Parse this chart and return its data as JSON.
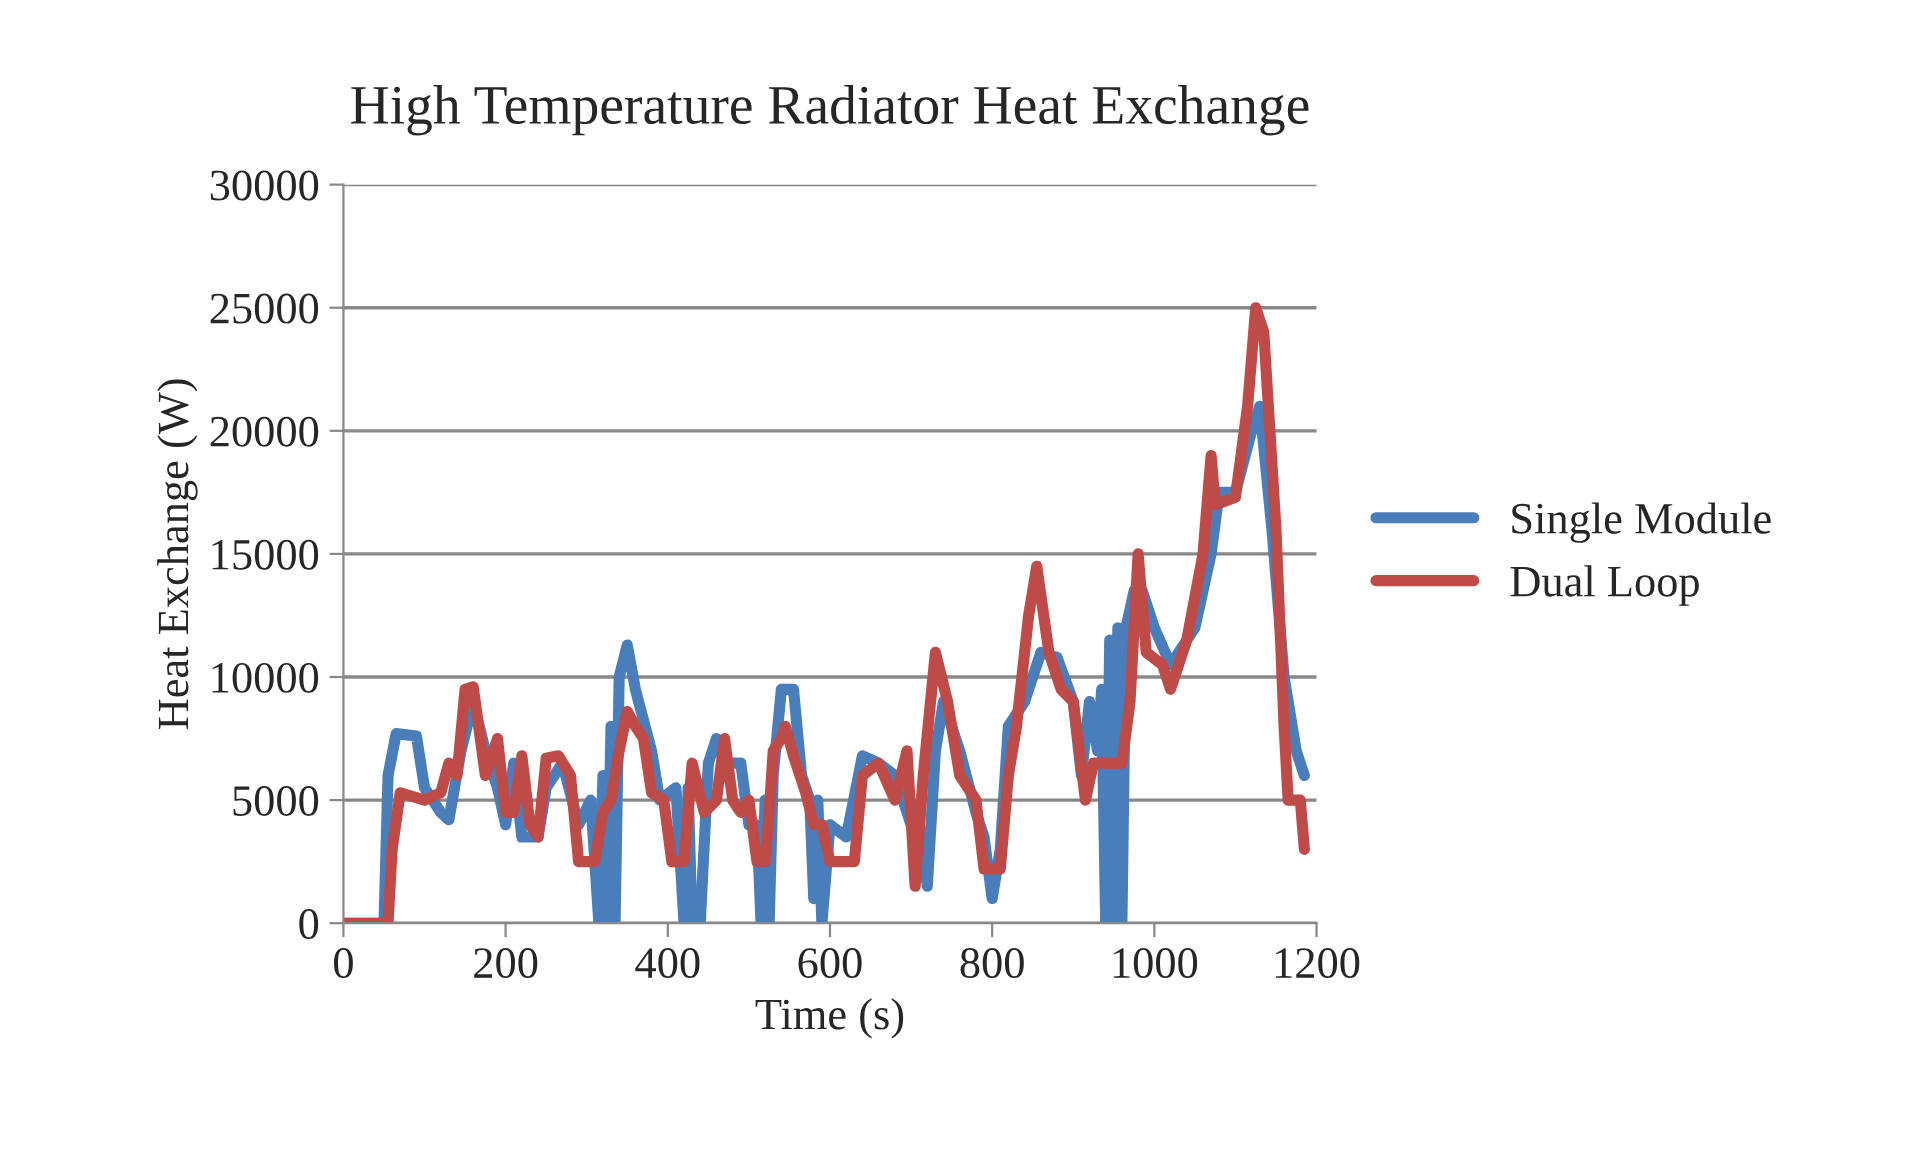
{
  "chart_data": {
    "type": "line",
    "title": "High Temperature Radiator Heat Exchange",
    "xlabel": "Time (s)",
    "ylabel": "Heat Exchange (W)",
    "xlim": [
      0,
      1200
    ],
    "xticks": [
      0,
      200,
      400,
      600,
      800,
      1000,
      1200
    ],
    "ylim": [
      0,
      30000
    ],
    "yticks": [
      0,
      5000,
      10000,
      15000,
      20000,
      25000,
      30000
    ],
    "grid": "y",
    "legend": "right",
    "marker": "none",
    "line_style": "solid",
    "series": [
      {
        "name": "Single Module",
        "color": "#4a7ebb",
        "x": [
          0,
          50,
          55,
          65,
          90,
          100,
          120,
          130,
          145,
          160,
          175,
          190,
          200,
          210,
          220,
          240,
          250,
          270,
          290,
          305,
          315,
          320,
          325,
          330,
          335,
          340,
          350,
          360,
          380,
          390,
          410,
          420,
          425,
          430,
          440,
          450,
          460,
          470,
          490,
          500,
          510,
          515,
          520,
          525,
          530,
          540,
          555,
          565,
          575,
          580,
          585,
          590,
          600,
          620,
          640,
          660,
          680,
          700,
          710,
          720,
          730,
          740,
          760,
          780,
          790,
          800,
          810,
          820,
          840,
          860,
          880,
          900,
          910,
          920,
          930,
          935,
          940,
          945,
          950,
          955,
          960,
          965,
          975,
          985,
          1000,
          1020,
          1050,
          1070,
          1080,
          1100,
          1120,
          1130,
          1145,
          1160,
          1175,
          1185
        ],
        "values": [
          0,
          0,
          6000,
          7700,
          7600,
          5500,
          4500,
          4200,
          7000,
          9000,
          7000,
          5500,
          4000,
          6500,
          3500,
          3500,
          5500,
          6500,
          4000,
          5000,
          0,
          6000,
          0,
          8000,
          0,
          10000,
          11300,
          9500,
          7000,
          5000,
          5500,
          0,
          5500,
          0,
          0,
          6500,
          7500,
          6500,
          6500,
          4000,
          4000,
          0,
          5000,
          0,
          6000,
          9500,
          9500,
          6000,
          5000,
          1000,
          5000,
          0,
          4000,
          3500,
          6800,
          6500,
          6000,
          4000,
          4000,
          1500,
          7000,
          9000,
          7000,
          4500,
          3500,
          1000,
          3000,
          8000,
          9000,
          11000,
          10800,
          9000,
          6000,
          9000,
          7000,
          9500,
          0,
          11500,
          0,
          12000,
          0,
          12000,
          13500,
          13500,
          12000,
          10500,
          12000,
          15000,
          17500,
          17500,
          20000,
          21000,
          16000,
          10000,
          7000,
          6000
        ]
      },
      {
        "name": "Dual Loop",
        "color": "#be4b48",
        "x": [
          0,
          55,
          60,
          70,
          100,
          120,
          130,
          140,
          150,
          160,
          175,
          190,
          200,
          210,
          220,
          230,
          240,
          250,
          265,
          280,
          290,
          310,
          320,
          330,
          340,
          350,
          360,
          370,
          380,
          395,
          405,
          420,
          430,
          445,
          460,
          470,
          480,
          490,
          500,
          510,
          520,
          525,
          530,
          540,
          545,
          555,
          570,
          580,
          590,
          600,
          630,
          640,
          660,
          680,
          695,
          705,
          715,
          730,
          745,
          760,
          780,
          790,
          810,
          820,
          830,
          845,
          855,
          870,
          885,
          900,
          915,
          925,
          960,
          970,
          980,
          990,
          1010,
          1020,
          1040,
          1060,
          1070,
          1075,
          1100,
          1115,
          1125,
          1135,
          1150,
          1160,
          1165,
          1180,
          1185
        ],
        "values": [
          0,
          0,
          3000,
          5300,
          5000,
          5300,
          6500,
          6000,
          9500,
          9600,
          6000,
          7500,
          4500,
          4500,
          6800,
          4000,
          3500,
          6700,
          6800,
          6000,
          2500,
          2500,
          4500,
          5000,
          7000,
          8600,
          8000,
          7500,
          5300,
          5000,
          2500,
          2500,
          6500,
          4500,
          5000,
          7500,
          5000,
          4500,
          5000,
          2500,
          2500,
          4500,
          7000,
          7500,
          8000,
          6800,
          5300,
          4000,
          4000,
          2500,
          2500,
          6000,
          6500,
          5000,
          7000,
          1500,
          6000,
          11000,
          9000,
          6000,
          5000,
          2200,
          2200,
          6000,
          8000,
          12500,
          14500,
          11000,
          9500,
          9000,
          5000,
          6500,
          6500,
          9000,
          15000,
          11000,
          10500,
          9500,
          11500,
          15000,
          19000,
          17000,
          17300,
          21000,
          25000,
          24000,
          16000,
          8000,
          5000,
          5000,
          3000
        ]
      }
    ]
  }
}
